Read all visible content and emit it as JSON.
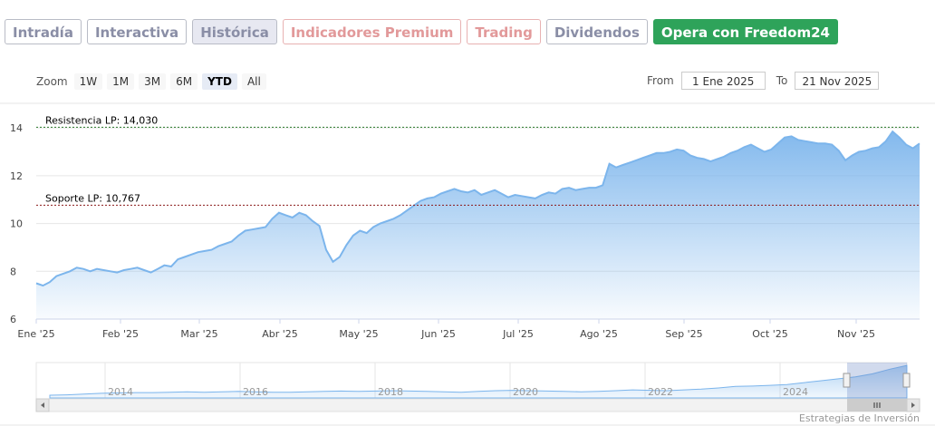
{
  "tabs": [
    {
      "label": "Intradía"
    },
    {
      "label": "Interactiva"
    },
    {
      "label": "Histórica"
    },
    {
      "label": "Indicadores Premium"
    },
    {
      "label": "Trading"
    },
    {
      "label": "Dividendos"
    },
    {
      "label": "Opera con Freedom24"
    }
  ],
  "zoom": {
    "label": "Zoom",
    "buttons": [
      "1W",
      "1M",
      "3M",
      "6M",
      "YTD",
      "All"
    ],
    "selected": "YTD"
  },
  "range": {
    "from_label": "From",
    "from_value": "1 Ene 2025",
    "to_label": "To",
    "to_value": "21 Nov 2025"
  },
  "credit": "Estrategias de Inversión",
  "colors": {
    "line": "#7cb5ec",
    "fill_top": "#7cb5ec",
    "resistance": "#2a7a2a",
    "support": "#8b1a1a",
    "buy_button": "#2ea35a"
  },
  "icons": {
    "scroll_left": "left-arrow-icon",
    "scroll_right": "right-arrow-icon",
    "grip": "grip-icon"
  },
  "chart_data": {
    "type": "area",
    "ylim": [
      6,
      14.5
    ],
    "yticks": [
      6,
      8,
      10,
      12,
      14
    ],
    "xticks": [
      "Ene '25",
      "Feb '25",
      "Mar '25",
      "Abr '25",
      "May '25",
      "Jun '25",
      "Jul '25",
      "Ago '25",
      "Sep '25",
      "Oct '25",
      "Nov '25"
    ],
    "annotations": [
      {
        "label": "Resistencia LP: 14,030",
        "value": 14.03
      },
      {
        "label": "Soporte LP: 10,767",
        "value": 10.767
      }
    ],
    "series": [
      {
        "values": [
          7.5,
          7.4,
          7.55,
          7.8,
          7.9,
          8.0,
          8.15,
          8.1,
          8.0,
          8.1,
          8.05,
          8.0,
          7.95,
          8.05,
          8.1,
          8.15,
          8.05,
          7.95,
          8.1,
          8.25,
          8.2,
          8.5,
          8.6,
          8.7,
          8.8,
          8.85,
          8.9,
          9.05,
          9.15,
          9.25,
          9.5,
          9.7,
          9.75,
          9.8,
          9.85,
          10.2,
          10.45,
          10.35,
          10.25,
          10.45,
          10.35,
          10.1,
          9.9,
          8.9,
          8.4,
          8.6,
          9.1,
          9.5,
          9.7,
          9.6,
          9.85,
          10.0,
          10.1,
          10.2,
          10.35,
          10.55,
          10.75,
          10.95,
          11.05,
          11.1,
          11.25,
          11.35,
          11.45,
          11.35,
          11.3,
          11.4,
          11.2,
          11.3,
          11.4,
          11.25,
          11.1,
          11.2,
          11.15,
          11.1,
          11.05,
          11.2,
          11.3,
          11.25,
          11.45,
          11.5,
          11.4,
          11.45,
          11.5,
          11.5,
          11.6,
          12.5,
          12.35,
          12.45,
          12.55,
          12.65,
          12.75,
          12.85,
          12.95,
          12.95,
          13.0,
          13.1,
          13.05,
          12.85,
          12.75,
          12.7,
          12.6,
          12.7,
          12.8,
          12.95,
          13.05,
          13.2,
          13.3,
          13.15,
          13.0,
          13.1,
          13.35,
          13.6,
          13.65,
          13.5,
          13.45,
          13.4,
          13.35,
          13.35,
          13.3,
          13.05,
          12.65,
          12.85,
          13.0,
          13.05,
          13.15,
          13.2,
          13.45,
          13.85,
          13.6,
          13.3,
          13.15,
          13.35
        ]
      }
    ],
    "navigator": {
      "ticks": [
        "2014",
        "2016",
        "2018",
        "2020",
        "2022",
        "2024"
      ],
      "values": [
        6.2,
        6.3,
        6.5,
        6.7,
        6.8,
        6.9,
        6.9,
        7.0,
        7.1,
        7.0,
        7.1,
        7.2,
        7.1,
        7.0,
        7.0,
        7.1,
        7.2,
        7.3,
        7.2,
        7.3,
        7.4,
        7.3,
        7.2,
        7.1,
        7.0,
        7.2,
        7.4,
        7.5,
        7.4,
        7.3,
        7.2,
        7.1,
        7.2,
        7.4,
        7.6,
        7.5,
        7.4,
        7.6,
        7.8,
        8.1,
        8.5,
        8.6,
        8.8,
        9.0,
        9.5,
        10.0,
        10.5,
        11.0,
        11.8,
        13.0,
        14.0
      ]
    }
  }
}
